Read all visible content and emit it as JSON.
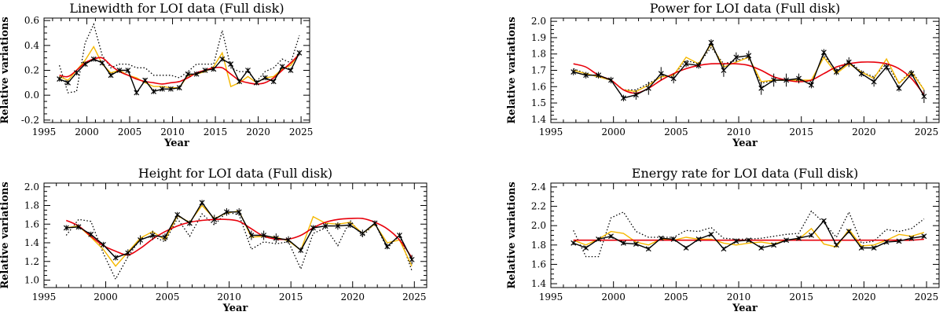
{
  "chart_data": [
    {
      "type": "line",
      "title": "Linewidth for LOI data (Full disk)",
      "xlabel": "Year",
      "ylabel": "Relative variations",
      "xlim": [
        1995,
        2026
      ],
      "ylim": [
        -0.22,
        0.62
      ],
      "xticks": [
        1995,
        2000,
        2005,
        2010,
        2015,
        2020,
        2025
      ],
      "xtick_labels": [
        "1995",
        "2000",
        "2005",
        "2010",
        "2015",
        "2020",
        "2025"
      ],
      "yticks": [
        -0.2,
        0.0,
        0.2,
        0.4,
        0.6
      ],
      "ytick_labels": [
        "-0.2",
        "0.0",
        "0.2",
        "0.4",
        "0.6"
      ],
      "x": [
        1996.8,
        1997.8,
        1998.8,
        1999.8,
        2000.8,
        2001.8,
        2002.8,
        2003.8,
        2004.8,
        2005.8,
        2006.8,
        2007.8,
        2008.8,
        2009.8,
        2010.8,
        2011.8,
        2012.8,
        2013.8,
        2014.8,
        2015.8,
        2016.8,
        2017.8,
        2018.8,
        2019.8,
        2020.8,
        2021.8,
        2022.8,
        2023.8,
        2024.8
      ],
      "series": [
        {
          "name": "black",
          "color": "#000000",
          "style": "solid-x",
          "values": [
            0.13,
            0.1,
            0.18,
            0.25,
            0.29,
            0.26,
            0.16,
            0.2,
            0.2,
            0.02,
            0.12,
            0.03,
            0.05,
            0.05,
            0.06,
            0.17,
            0.17,
            0.2,
            0.21,
            0.29,
            0.25,
            0.11,
            0.2,
            0.1,
            0.14,
            0.11,
            0.23,
            0.2,
            0.34
          ],
          "errors": [
            0.02,
            0.02,
            0.02,
            0.02,
            0.02,
            0.02,
            0.02,
            0.02,
            0.02,
            0.02,
            0.02,
            0.02,
            0.02,
            0.02,
            0.02,
            0.02,
            0.02,
            0.02,
            0.02,
            0.02,
            0.02,
            0.02,
            0.02,
            0.02,
            0.02,
            0.02,
            0.02,
            0.02,
            0.02
          ]
        },
        {
          "name": "yellow",
          "color": "#f5b800",
          "style": "solid",
          "values": [
            0.15,
            0.12,
            0.2,
            0.28,
            0.39,
            0.25,
            0.18,
            0.2,
            0.16,
            0.14,
            0.1,
            0.07,
            0.07,
            0.06,
            0.06,
            0.16,
            0.17,
            0.19,
            0.23,
            0.34,
            0.07,
            0.1,
            0.15,
            0.1,
            0.14,
            0.15,
            0.21,
            0.24,
            0.34
          ]
        },
        {
          "name": "dotted",
          "color": "#000000",
          "style": "dotted",
          "values": [
            0.24,
            0.02,
            0.03,
            0.42,
            0.57,
            0.32,
            0.22,
            0.25,
            0.25,
            0.22,
            0.22,
            0.16,
            0.16,
            0.16,
            0.14,
            0.19,
            0.25,
            0.25,
            0.25,
            0.52,
            0.22,
            0.19,
            0.19,
            0.11,
            0.19,
            0.22,
            0.29,
            0.26,
            0.48
          ]
        },
        {
          "name": "red-fit",
          "color": "#e8000b",
          "style": "smooth",
          "values": [
            0.16,
            0.15,
            0.2,
            0.26,
            0.29,
            0.3,
            0.24,
            0.19,
            0.16,
            0.13,
            0.11,
            0.1,
            0.09,
            0.1,
            0.11,
            0.14,
            0.18,
            0.2,
            0.22,
            0.22,
            0.17,
            0.12,
            0.1,
            0.09,
            0.1,
            0.14,
            0.2,
            0.26,
            0.33
          ]
        }
      ]
    },
    {
      "type": "line",
      "title": "Power for LOI data (Full disk)",
      "xlabel": "Year",
      "ylabel": "Relative variations",
      "xlim": [
        1995,
        2026
      ],
      "ylim": [
        1.38,
        2.02
      ],
      "xticks": [
        1995,
        2000,
        2005,
        2010,
        2015,
        2020,
        2025
      ],
      "xtick_labels": [
        "1995",
        "2000",
        "2005",
        "2010",
        "2015",
        "2020",
        "2025"
      ],
      "yticks": [
        1.4,
        1.5,
        1.6,
        1.7,
        1.8,
        1.9,
        2.0
      ],
      "ytick_labels": [
        "1.4",
        "1.5",
        "1.6",
        "1.7",
        "1.8",
        "1.9",
        "2.0"
      ],
      "x": [
        1996.8,
        1997.8,
        1998.8,
        1999.8,
        2000.8,
        2001.8,
        2002.8,
        2003.8,
        2004.8,
        2005.8,
        2006.8,
        2007.8,
        2008.8,
        2009.8,
        2010.8,
        2011.8,
        2012.8,
        2013.8,
        2014.8,
        2015.8,
        2016.8,
        2017.8,
        2018.8,
        2019.8,
        2020.8,
        2021.8,
        2022.8,
        2023.8,
        2024.8
      ],
      "series": [
        {
          "name": "black",
          "color": "#000000",
          "style": "solid-x",
          "values": [
            1.69,
            1.67,
            1.67,
            1.64,
            1.53,
            1.55,
            1.59,
            1.68,
            1.65,
            1.74,
            1.73,
            1.87,
            1.7,
            1.78,
            1.79,
            1.59,
            1.64,
            1.64,
            1.65,
            1.61,
            1.81,
            1.69,
            1.75,
            1.68,
            1.63,
            1.72,
            1.59,
            1.68,
            1.54
          ],
          "errors": [
            0.02,
            0.02,
            0.02,
            0.02,
            0.02,
            0.03,
            0.04,
            0.04,
            0.03,
            0.02,
            0.02,
            0.02,
            0.04,
            0.03,
            0.03,
            0.04,
            0.04,
            0.04,
            0.03,
            0.02,
            0.02,
            0.02,
            0.03,
            0.02,
            0.03,
            0.02,
            0.02,
            0.02,
            0.04
          ]
        },
        {
          "name": "yellow",
          "color": "#f5b800",
          "style": "solid",
          "values": [
            1.7,
            1.68,
            1.66,
            1.64,
            1.58,
            1.57,
            1.61,
            1.66,
            1.67,
            1.78,
            1.74,
            1.86,
            1.72,
            1.75,
            1.78,
            1.63,
            1.64,
            1.64,
            1.64,
            1.64,
            1.78,
            1.68,
            1.74,
            1.69,
            1.65,
            1.77,
            1.62,
            1.69,
            1.58
          ]
        },
        {
          "name": "dotted",
          "color": "#000000",
          "style": "dotted",
          "values": [
            1.71,
            1.68,
            1.66,
            1.64,
            1.58,
            1.58,
            1.62,
            1.66,
            1.67,
            1.76,
            1.74,
            1.84,
            1.74,
            1.76,
            1.78,
            1.62,
            1.64,
            1.64,
            1.64,
            1.63,
            1.79,
            1.7,
            1.76,
            1.69,
            1.66,
            1.74,
            1.62,
            1.7,
            1.58
          ]
        },
        {
          "name": "red-fit",
          "color": "#e8000b",
          "style": "smooth",
          "values": [
            1.74,
            1.72,
            1.67,
            1.64,
            1.58,
            1.56,
            1.59,
            1.64,
            1.68,
            1.71,
            1.73,
            1.74,
            1.74,
            1.74,
            1.73,
            1.7,
            1.66,
            1.64,
            1.63,
            1.64,
            1.68,
            1.72,
            1.74,
            1.75,
            1.75,
            1.74,
            1.71,
            1.65,
            1.55
          ]
        }
      ]
    },
    {
      "type": "line",
      "title": "Height for LOI data (Full disk)",
      "xlabel": "Year",
      "ylabel": "Relative variations",
      "xlim": [
        1995,
        2026
      ],
      "ylim": [
        0.92,
        2.04
      ],
      "xticks": [
        1995,
        2000,
        2005,
        2010,
        2015,
        2020,
        2025
      ],
      "xtick_labels": [
        "1995",
        "2000",
        "2005",
        "2010",
        "2015",
        "2020",
        "2025"
      ],
      "yticks": [
        1.0,
        1.2,
        1.4,
        1.6,
        1.8,
        2.0
      ],
      "ytick_labels": [
        "1.0",
        "1.2",
        "1.4",
        "1.6",
        "1.8",
        "2.0"
      ],
      "x": [
        1996.8,
        1997.8,
        1998.8,
        1999.8,
        2000.8,
        2001.8,
        2002.8,
        2003.8,
        2004.8,
        2005.8,
        2006.8,
        2007.8,
        2008.8,
        2009.8,
        2010.8,
        2011.8,
        2012.8,
        2013.8,
        2014.8,
        2015.8,
        2016.8,
        2017.8,
        2018.8,
        2019.8,
        2020.8,
        2021.8,
        2022.8,
        2023.8,
        2024.8
      ],
      "series": [
        {
          "name": "black",
          "color": "#000000",
          "style": "solid-x",
          "values": [
            1.56,
            1.57,
            1.49,
            1.38,
            1.24,
            1.29,
            1.43,
            1.48,
            1.46,
            1.7,
            1.61,
            1.83,
            1.65,
            1.73,
            1.73,
            1.48,
            1.48,
            1.45,
            1.43,
            1.32,
            1.56,
            1.58,
            1.58,
            1.59,
            1.5,
            1.61,
            1.36,
            1.48,
            1.22
          ],
          "errors": [
            0.03,
            0.03,
            0.03,
            0.03,
            0.03,
            0.04,
            0.05,
            0.05,
            0.04,
            0.03,
            0.03,
            0.03,
            0.05,
            0.04,
            0.04,
            0.05,
            0.05,
            0.05,
            0.04,
            0.03,
            0.03,
            0.03,
            0.04,
            0.03,
            0.04,
            0.03,
            0.03,
            0.03,
            0.05
          ]
        },
        {
          "name": "yellow",
          "color": "#f5b800",
          "style": "solid",
          "values": [
            1.56,
            1.58,
            1.46,
            1.33,
            1.15,
            1.3,
            1.45,
            1.52,
            1.43,
            1.69,
            1.62,
            1.8,
            1.66,
            1.72,
            1.74,
            1.46,
            1.47,
            1.46,
            1.42,
            1.32,
            1.68,
            1.61,
            1.6,
            1.62,
            1.5,
            1.6,
            1.4,
            1.43,
            1.15
          ]
        },
        {
          "name": "dotted",
          "color": "#000000",
          "style": "dotted",
          "values": [
            1.48,
            1.65,
            1.63,
            1.29,
            1.01,
            1.25,
            1.44,
            1.47,
            1.41,
            1.66,
            1.47,
            1.71,
            1.59,
            1.73,
            1.7,
            1.33,
            1.41,
            1.39,
            1.41,
            1.12,
            1.5,
            1.56,
            1.37,
            1.64,
            1.47,
            1.61,
            1.34,
            1.48,
            1.1
          ]
        },
        {
          "name": "red-fit",
          "color": "#e8000b",
          "style": "smooth",
          "values": [
            1.64,
            1.58,
            1.47,
            1.37,
            1.31,
            1.27,
            1.34,
            1.44,
            1.52,
            1.58,
            1.62,
            1.64,
            1.65,
            1.65,
            1.63,
            1.55,
            1.47,
            1.44,
            1.44,
            1.48,
            1.56,
            1.62,
            1.65,
            1.66,
            1.66,
            1.62,
            1.55,
            1.43,
            1.24
          ]
        }
      ]
    },
    {
      "type": "line",
      "title": "Energy rate for LOI data (Full disk)",
      "xlabel": "Year",
      "ylabel": "Relative variations",
      "xlim": [
        1995,
        2026
      ],
      "ylim": [
        1.36,
        2.44
      ],
      "xticks": [
        1995,
        2000,
        2005,
        2010,
        2015,
        2020,
        2025
      ],
      "xtick_labels": [
        "1995",
        "2000",
        "2005",
        "2010",
        "2015",
        "2020",
        "2025"
      ],
      "yticks": [
        1.4,
        1.6,
        1.8,
        2.0,
        2.2,
        2.4
      ],
      "ytick_labels": [
        "1.4",
        "1.6",
        "1.8",
        "2.0",
        "2.2",
        "2.4"
      ],
      "x": [
        1996.8,
        1997.8,
        1998.8,
        1999.8,
        2000.8,
        2001.8,
        2002.8,
        2003.8,
        2004.8,
        2005.8,
        2006.8,
        2007.8,
        2008.8,
        2009.8,
        2010.8,
        2011.8,
        2012.8,
        2013.8,
        2014.8,
        2015.8,
        2016.8,
        2017.8,
        2018.8,
        2019.8,
        2020.8,
        2021.8,
        2022.8,
        2023.8,
        2024.8
      ],
      "series": [
        {
          "name": "black",
          "color": "#000000",
          "style": "solid-x",
          "values": [
            1.82,
            1.77,
            1.86,
            1.89,
            1.82,
            1.81,
            1.76,
            1.87,
            1.86,
            1.77,
            1.86,
            1.91,
            1.76,
            1.84,
            1.85,
            1.77,
            1.8,
            1.85,
            1.87,
            1.9,
            2.05,
            1.8,
            1.94,
            1.77,
            1.77,
            1.83,
            1.84,
            1.87,
            1.89
          ],
          "errors": [
            0.02,
            0.02,
            0.02,
            0.02,
            0.02,
            0.02,
            0.02,
            0.02,
            0.02,
            0.02,
            0.02,
            0.02,
            0.02,
            0.02,
            0.02,
            0.02,
            0.02,
            0.02,
            0.02,
            0.02,
            0.02,
            0.02,
            0.02,
            0.02,
            0.02,
            0.02,
            0.02,
            0.02,
            0.02
          ]
        },
        {
          "name": "yellow",
          "color": "#f5b800",
          "style": "solid",
          "values": [
            1.85,
            1.8,
            1.86,
            1.94,
            1.92,
            1.83,
            1.8,
            1.86,
            1.85,
            1.88,
            1.86,
            1.86,
            1.82,
            1.8,
            1.82,
            1.83,
            1.81,
            1.85,
            1.86,
            1.97,
            1.81,
            1.78,
            1.96,
            1.79,
            1.8,
            1.85,
            1.91,
            1.89,
            1.93
          ]
        },
        {
          "name": "dotted",
          "color": "#000000",
          "style": "dotted",
          "values": [
            1.95,
            1.68,
            1.68,
            2.08,
            2.14,
            1.94,
            1.88,
            1.88,
            1.88,
            1.95,
            1.94,
            1.98,
            1.87,
            1.86,
            1.86,
            1.87,
            1.89,
            1.91,
            1.92,
            2.15,
            2.03,
            1.88,
            2.14,
            1.82,
            1.84,
            1.96,
            1.94,
            1.97,
            2.07
          ]
        },
        {
          "name": "red-fit",
          "color": "#e8000b",
          "style": "smooth",
          "values": [
            1.85,
            1.85,
            1.85,
            1.85,
            1.85,
            1.85,
            1.85,
            1.85,
            1.85,
            1.85,
            1.85,
            1.85,
            1.85,
            1.85,
            1.85,
            1.85,
            1.85,
            1.85,
            1.85,
            1.85,
            1.85,
            1.85,
            1.85,
            1.85,
            1.85,
            1.85,
            1.85,
            1.85,
            1.86
          ]
        }
      ]
    }
  ]
}
